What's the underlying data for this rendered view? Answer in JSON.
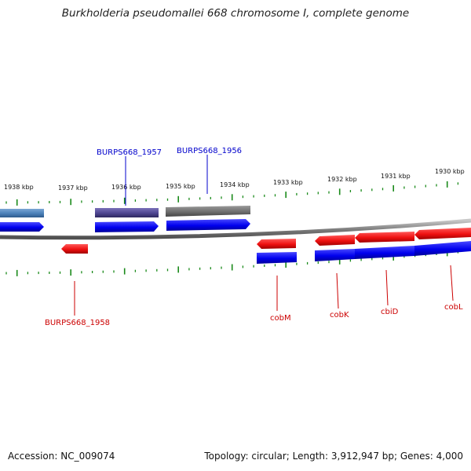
{
  "title": "Burkholderia pseudomallei 668 chromosome I, complete genome",
  "footer": {
    "accession": "Accession: NC_009074",
    "stats": "Topology: circular; Length: 3,912,947 bp; Genes: 4,000"
  },
  "colors": {
    "backbone": "#808080",
    "tick": "#1a8a1a",
    "red": "#ee1111",
    "blue": "#0000ee",
    "label_red": "#cc0000",
    "label_blue": "#0000cc"
  },
  "scale_labels": [
    "1938 kbp",
    "1937 kbp",
    "1936 kbp",
    "1935 kbp",
    "1934 kbp",
    "1933 kbp",
    "1932 kbp",
    "1931 kbp",
    "1930 kbp"
  ],
  "gene_labels": {
    "g1957": "BURPS668_1957",
    "g1956": "BURPS668_1956",
    "g1958": "BURPS668_1958",
    "cobM": "cobM",
    "cobK": "cobK",
    "cbiD": "cbiD",
    "cobL": "cobL"
  }
}
